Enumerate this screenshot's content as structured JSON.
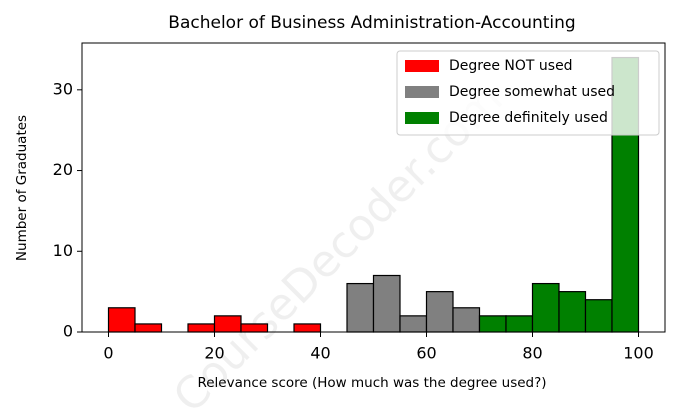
{
  "chart_data": {
    "type": "histogram",
    "title": "Bachelor of Business Administration-Accounting",
    "x_label": "Relevance score (How much was the degree used?)",
    "y_label": "Number of Graduates",
    "watermark": "CourseDecoder.com",
    "bins": [
      0,
      5,
      10,
      15,
      20,
      25,
      30,
      35,
      40,
      45,
      50,
      55,
      60,
      65,
      70,
      75,
      80,
      85,
      90,
      95,
      100
    ],
    "series": [
      {
        "name": "Degree NOT used",
        "color": "#ff0000",
        "values": [
          3,
          1,
          0,
          1,
          2,
          1,
          0,
          1,
          0,
          0,
          0,
          0,
          0,
          0,
          0,
          0,
          0,
          0,
          0,
          0
        ]
      },
      {
        "name": "Degree somewhat used",
        "color": "#808080",
        "values": [
          0,
          0,
          0,
          0,
          0,
          0,
          0,
          0,
          0,
          6,
          7,
          2,
          5,
          3,
          0,
          0,
          0,
          0,
          0,
          0
        ]
      },
      {
        "name": "Degree definitely used",
        "color": "#008000",
        "values": [
          0,
          0,
          0,
          0,
          0,
          0,
          0,
          0,
          0,
          0,
          0,
          0,
          0,
          0,
          2,
          2,
          6,
          5,
          4,
          34
        ]
      }
    ],
    "xlim": [
      -5,
      105
    ],
    "ylim": [
      0,
      35.8
    ],
    "xticks": [
      0,
      20,
      40,
      60,
      80,
      100
    ],
    "yticks": [
      0,
      10,
      20,
      30
    ],
    "legend": "upper right"
  }
}
